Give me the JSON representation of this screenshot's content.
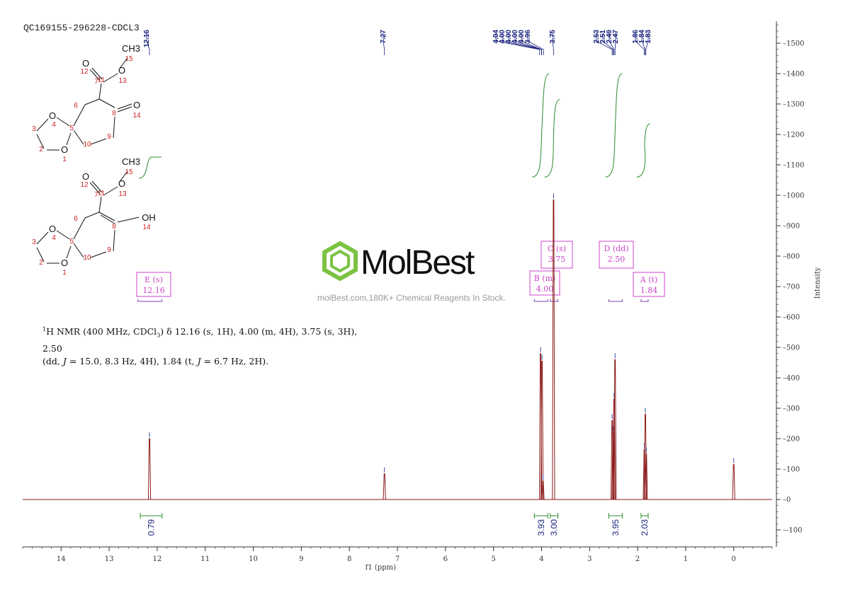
{
  "sample_title": "QC169155-296228-CDCL3",
  "description_line1_html": "<sup>1</sup>H NMR (400 MHz, CDCl<sub style=\"font-size:8px\">3</sub>) δ 12.16 (s, 1H), 4.00 (m, 4H), 3.75 (s, 3H), 2.50",
  "description_line2_html": "(dd, <i>J</i> = 15.0, 8.3 Hz, 4H), 1.84 (t, <i>J</i> = 6.7 Hz, 2H).",
  "watermark": {
    "brand": "MolBest",
    "tagline": "molBest.com,180K+ Chemical Reagents In Stock."
  },
  "colors": {
    "spectrum": "#8b1a1a",
    "integral": "#2e8b2e",
    "peak_label": "#1a237e",
    "multiplet_box": "#cc44cc",
    "axis": "#333333",
    "atom_number": "#cc2222"
  },
  "chart_data": {
    "type": "line",
    "xlabel": "f1 (ppm)",
    "ylabel": "Intensity",
    "x_range": [
      14.8,
      -0.8
    ],
    "x_reversed": true,
    "x_ticks": [
      14,
      13,
      12,
      11,
      10,
      9,
      8,
      7,
      6,
      5,
      4,
      3,
      2,
      1,
      0
    ],
    "y_range": [
      -150,
      1570
    ],
    "y_ticks": [
      -100,
      0,
      100,
      200,
      300,
      400,
      500,
      600,
      700,
      800,
      900,
      1000,
      1100,
      1200,
      1300,
      1400,
      1500
    ],
    "peaks": [
      {
        "ppm": 12.16,
        "height": 200
      },
      {
        "ppm": 7.27,
        "height": 85
      },
      {
        "ppm": 4.02,
        "height": 480
      },
      {
        "ppm": 3.99,
        "height": 455
      },
      {
        "ppm": 3.97,
        "height": 60
      },
      {
        "ppm": 3.75,
        "height": 985
      },
      {
        "ppm": 2.53,
        "height": 260
      },
      {
        "ppm": 2.51,
        "height": 220
      },
      {
        "ppm": 2.49,
        "height": 330
      },
      {
        "ppm": 2.47,
        "height": 460
      },
      {
        "ppm": 1.86,
        "height": 165
      },
      {
        "ppm": 1.84,
        "height": 280
      },
      {
        "ppm": 1.82,
        "height": 150
      },
      {
        "ppm": 0.0,
        "height": 115
      }
    ],
    "peak_labels": [
      {
        "text": "12.16",
        "ppm": 12.16
      },
      {
        "text": "7.27",
        "ppm": 7.27
      },
      {
        "text": "4.04",
        "ppm": 4.04
      },
      {
        "text": "4.00",
        "ppm": 4.0
      },
      {
        "text": "4.00",
        "ppm": 4.0
      },
      {
        "text": "4.00",
        "ppm": 4.0
      },
      {
        "text": "4.00",
        "ppm": 4.0
      },
      {
        "text": "3.96",
        "ppm": 3.96
      },
      {
        "text": "3.75",
        "ppm": 3.75
      },
      {
        "text": "2.53",
        "ppm": 2.53
      },
      {
        "text": "2.51",
        "ppm": 2.51
      },
      {
        "text": "2.49",
        "ppm": 2.49
      },
      {
        "text": "2.47",
        "ppm": 2.47
      },
      {
        "text": "1.86",
        "ppm": 1.86
      },
      {
        "text": "1.84",
        "ppm": 1.84
      },
      {
        "text": "1.83",
        "ppm": 1.83
      }
    ],
    "integrals": [
      {
        "from": 12.35,
        "to": 11.9,
        "value": "0.79"
      },
      {
        "from": 4.15,
        "to": 3.87,
        "value": "3.93"
      },
      {
        "from": 3.82,
        "to": 3.66,
        "value": "3.00"
      },
      {
        "from": 2.6,
        "to": 2.32,
        "value": "3.95"
      },
      {
        "from": 1.93,
        "to": 1.78,
        "value": "2.03"
      }
    ],
    "integral_curves": [
      {
        "from": 4.08,
        "to": 3.9,
        "rise": 340
      },
      {
        "from": 3.82,
        "to": 3.68,
        "rise": 255
      },
      {
        "from": 2.55,
        "to": 2.38,
        "rise": 340
      },
      {
        "from": 1.9,
        "to": 1.8,
        "rise": 175
      }
    ],
    "multiplets": [
      {
        "label": "E (s)",
        "shift": "12.16",
        "from": 12.4,
        "to": 11.9
      },
      {
        "label": "B (m)",
        "shift": "4.00",
        "from": 4.15,
        "to": 3.87
      },
      {
        "label": "C (s)",
        "shift": "3.75",
        "from": 3.82,
        "to": 3.66
      },
      {
        "label": "D (dd)",
        "shift": "2.50",
        "from": 2.6,
        "to": 2.32
      },
      {
        "label": "A (t)",
        "shift": "1.84",
        "from": 1.93,
        "to": 1.78
      }
    ]
  },
  "structures": {
    "keto_atoms": [
      "1",
      "2",
      "3",
      "4",
      "5",
      "6",
      "7",
      "8",
      "9",
      "10",
      "11",
      "12",
      "13",
      "14",
      "15"
    ],
    "enol_atoms": [
      "1",
      "2",
      "3",
      "4",
      "5",
      "6",
      "7",
      "8",
      "9",
      "10",
      "11",
      "12",
      "13",
      "14",
      "15"
    ],
    "keto_labels": {
      "O12": "O",
      "O13": "O",
      "CH3": "CH3",
      "O14": "O",
      "O4": "O",
      "O1": "O"
    },
    "enol_labels": {
      "O12": "O",
      "O13": "O",
      "CH3": "CH3",
      "OH": "OH",
      "O4": "O",
      "O1": "O"
    }
  }
}
